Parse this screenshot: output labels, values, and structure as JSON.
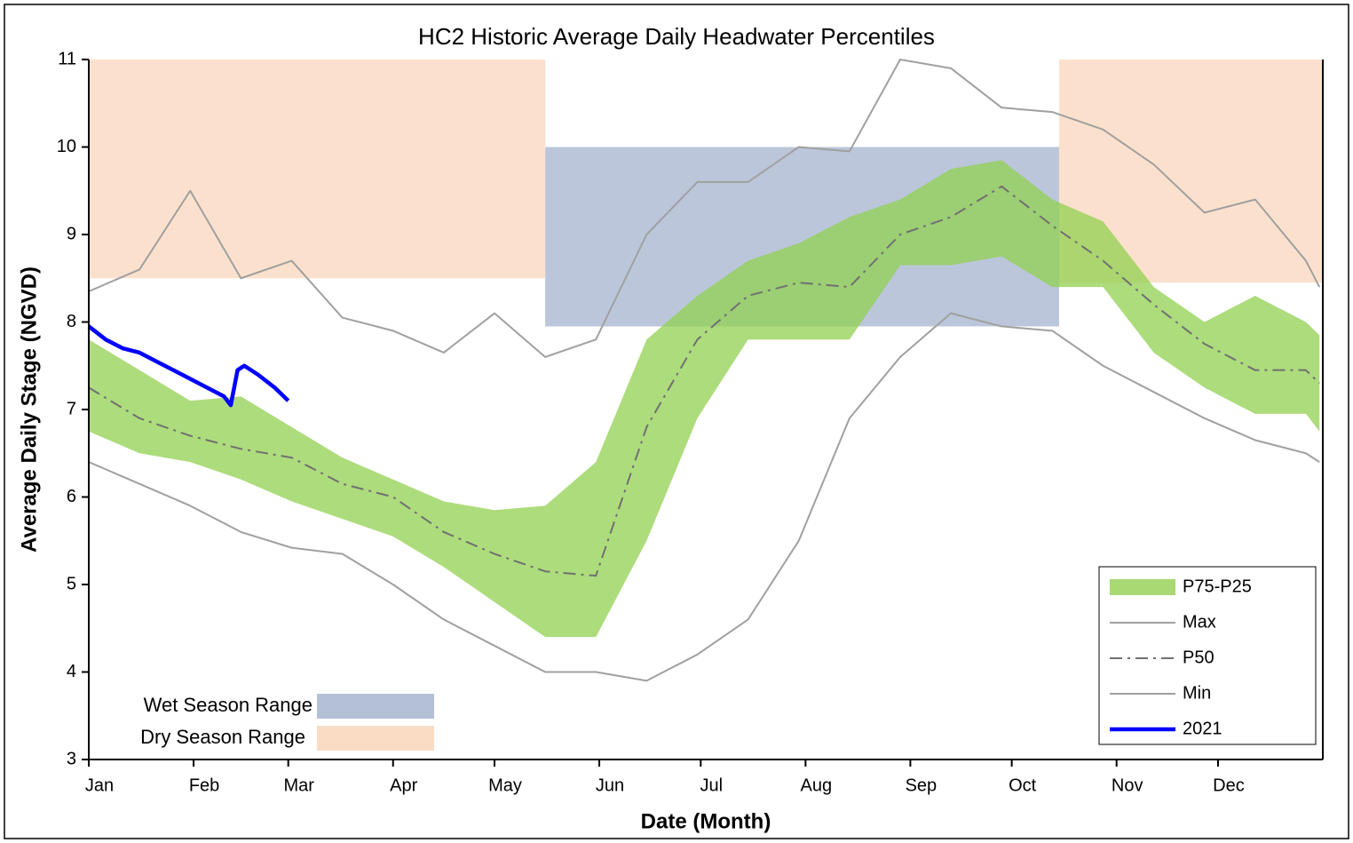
{
  "chart_data": {
    "type": "line",
    "title": "HC2 Historic Average Daily Headwater Percentiles",
    "xlabel": "Date (Month)",
    "ylabel": "Average Daily Stage (NGVD)",
    "xlim": [
      0,
      365
    ],
    "xticks": [
      {
        "value": 0,
        "label": "Jan"
      },
      {
        "value": 31,
        "label": "Feb"
      },
      {
        "value": 59,
        "label": "Mar"
      },
      {
        "value": 90,
        "label": "Apr"
      },
      {
        "value": 120,
        "label": "May"
      },
      {
        "value": 151,
        "label": "Jun"
      },
      {
        "value": 181,
        "label": "Jul"
      },
      {
        "value": 212,
        "label": "Aug"
      },
      {
        "value": 243,
        "label": "Sep"
      },
      {
        "value": 273,
        "label": "Oct"
      },
      {
        "value": 304,
        "label": "Nov"
      },
      {
        "value": 334,
        "label": "Dec"
      }
    ],
    "ylim": [
      3,
      11
    ],
    "yticks": [
      3,
      4,
      5,
      6,
      7,
      8,
      9,
      10,
      11
    ],
    "x": [
      0,
      15,
      30,
      45,
      60,
      75,
      90,
      105,
      120,
      135,
      150,
      165,
      180,
      195,
      210,
      225,
      240,
      255,
      270,
      285,
      300,
      315,
      330,
      345,
      360,
      364
    ],
    "ranges": [
      {
        "name": "Wet Season Range",
        "color": "#b4c0d6",
        "boxes": [
          {
            "x": [
              135,
              287
            ],
            "y": [
              7.95,
              10
            ]
          }
        ]
      },
      {
        "name": "Dry Season Range",
        "color": "#fadcc4",
        "boxes": [
          {
            "x": [
              0,
              135
            ],
            "y": [
              8.5,
              11
            ]
          },
          {
            "x": [
              287,
              365
            ],
            "y": [
              8.45,
              11
            ]
          }
        ]
      }
    ],
    "series": [
      {
        "name": "P75-P25",
        "kind": "band",
        "color": "#92d050",
        "upper": [
          7.8,
          7.45,
          7.1,
          7.15,
          6.8,
          6.45,
          6.2,
          5.95,
          5.85,
          5.9,
          6.4,
          7.8,
          8.3,
          8.7,
          8.9,
          9.2,
          9.4,
          9.75,
          9.85,
          9.4,
          9.15,
          8.4,
          8.0,
          8.3,
          8.0,
          7.85
        ],
        "lower": [
          6.75,
          6.5,
          6.4,
          6.2,
          5.95,
          5.75,
          5.55,
          5.2,
          4.8,
          4.4,
          4.4,
          5.5,
          6.9,
          7.8,
          7.8,
          7.8,
          8.65,
          8.65,
          8.75,
          8.4,
          8.4,
          7.65,
          7.25,
          6.95,
          6.95,
          6.75
        ]
      },
      {
        "name": "Max",
        "kind": "line",
        "color": "#a0a0a0",
        "values": [
          8.35,
          8.6,
          9.5,
          8.5,
          8.7,
          8.05,
          7.9,
          7.65,
          8.1,
          7.6,
          7.8,
          9.0,
          9.6,
          9.6,
          10.0,
          9.95,
          11.0,
          10.9,
          10.45,
          10.4,
          10.2,
          9.8,
          9.25,
          9.4,
          8.7,
          8.4
        ]
      },
      {
        "name": "P50",
        "kind": "dash",
        "color": "#707070",
        "values": [
          7.25,
          6.9,
          6.7,
          6.55,
          6.45,
          6.15,
          6.0,
          5.6,
          5.35,
          5.15,
          5.1,
          6.8,
          7.8,
          8.3,
          8.45,
          8.4,
          9.0,
          9.2,
          9.55,
          9.1,
          8.7,
          8.2,
          7.75,
          7.45,
          7.45,
          7.3
        ]
      },
      {
        "name": "Min",
        "kind": "line",
        "color": "#a0a0a0",
        "values": [
          6.4,
          6.15,
          5.9,
          5.6,
          5.42,
          5.35,
          5.0,
          4.6,
          4.3,
          4.0,
          4.0,
          3.9,
          4.2,
          4.6,
          5.5,
          6.9,
          7.6,
          8.1,
          7.95,
          7.9,
          7.5,
          7.2,
          6.9,
          6.65,
          6.5,
          6.4
        ]
      },
      {
        "name": "2021",
        "kind": "bold",
        "color": "#0000ff",
        "x": [
          0,
          5,
          10,
          15,
          20,
          25,
          30,
          35,
          40,
          42,
          44,
          46,
          50,
          55,
          59
        ],
        "values": [
          7.95,
          7.8,
          7.7,
          7.65,
          7.55,
          7.45,
          7.35,
          7.25,
          7.15,
          7.05,
          7.45,
          7.5,
          7.4,
          7.25,
          7.1
        ]
      }
    ]
  }
}
